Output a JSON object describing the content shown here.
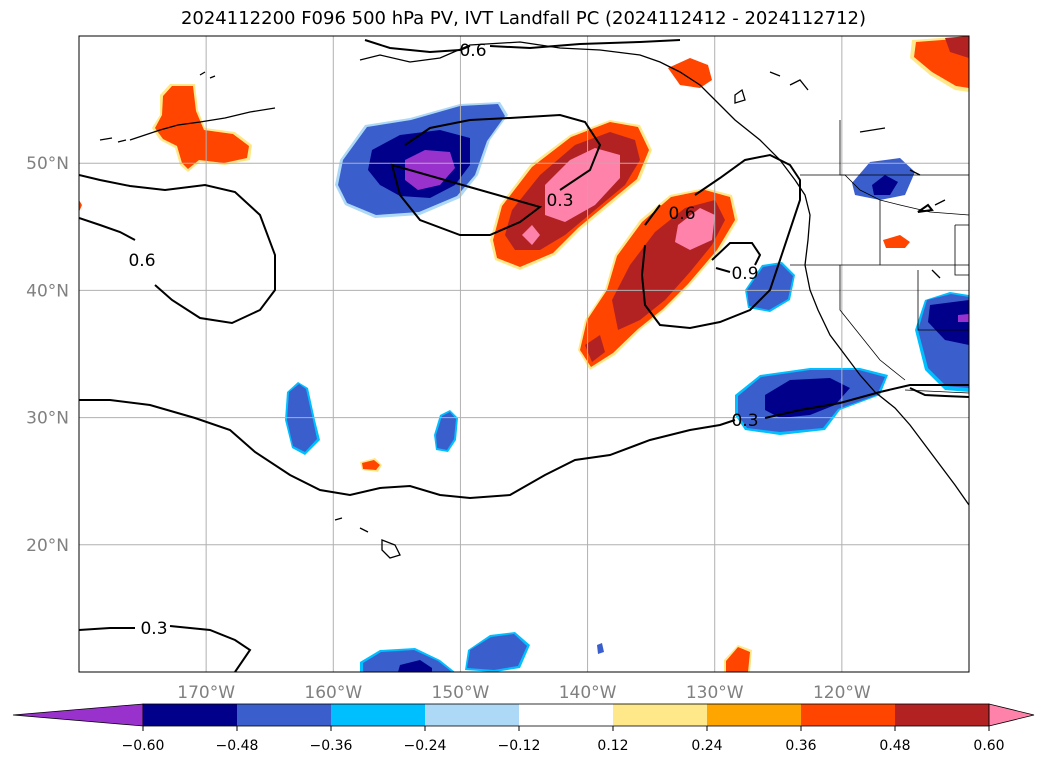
{
  "title": "2024112200 F096 500 hPa PV, IVT Landfall PC (2024112412 - 2024112712)",
  "axes": {
    "lat_labels": [
      "50°N",
      "40°N",
      "30°N",
      "20°N"
    ],
    "lat_values": [
      50,
      40,
      30,
      20
    ],
    "lon_labels": [
      "170°W",
      "160°W",
      "150°W",
      "140°W",
      "130°W",
      "120°W"
    ],
    "lon_values": [
      -170,
      -160,
      -150,
      -140,
      -130,
      -120
    ],
    "lon_range": [
      -180,
      -110
    ],
    "lat_range": [
      10,
      60
    ],
    "grid": true
  },
  "contour_labels": [
    "0.6",
    "0.6",
    "0.3",
    "0.6",
    "0.9",
    "0.3",
    "0.3"
  ],
  "colorbar": {
    "tick_labels": [
      "−0.60",
      "−0.48",
      "−0.36",
      "−0.24",
      "−0.12",
      "0.12",
      "0.24",
      "0.36",
      "0.48",
      "0.60"
    ],
    "levels": [
      -0.6,
      -0.48,
      -0.36,
      -0.24,
      -0.12,
      0.12,
      0.24,
      0.36,
      0.48,
      0.6
    ],
    "colors": [
      "#9932cc",
      "#00008b",
      "#3a5fcd",
      "#00bfff",
      "#add8f6",
      "#ffffff",
      "#ffe88a",
      "#ffa500",
      "#ff4500",
      "#b22222",
      "#ff82ab"
    ],
    "extend": "both"
  },
  "colors": {
    "neg_extreme": "#9932cc",
    "neg_strong": "#00008b",
    "neg_mid": "#3a5fcd",
    "neg_light": "#00bfff",
    "neg_pale": "#add8f6",
    "pos_pale": "#ffe88a",
    "pos_light": "#ffa500",
    "pos_mid": "#ff4500",
    "pos_strong": "#b22222",
    "pos_extreme": "#ff82ab"
  }
}
